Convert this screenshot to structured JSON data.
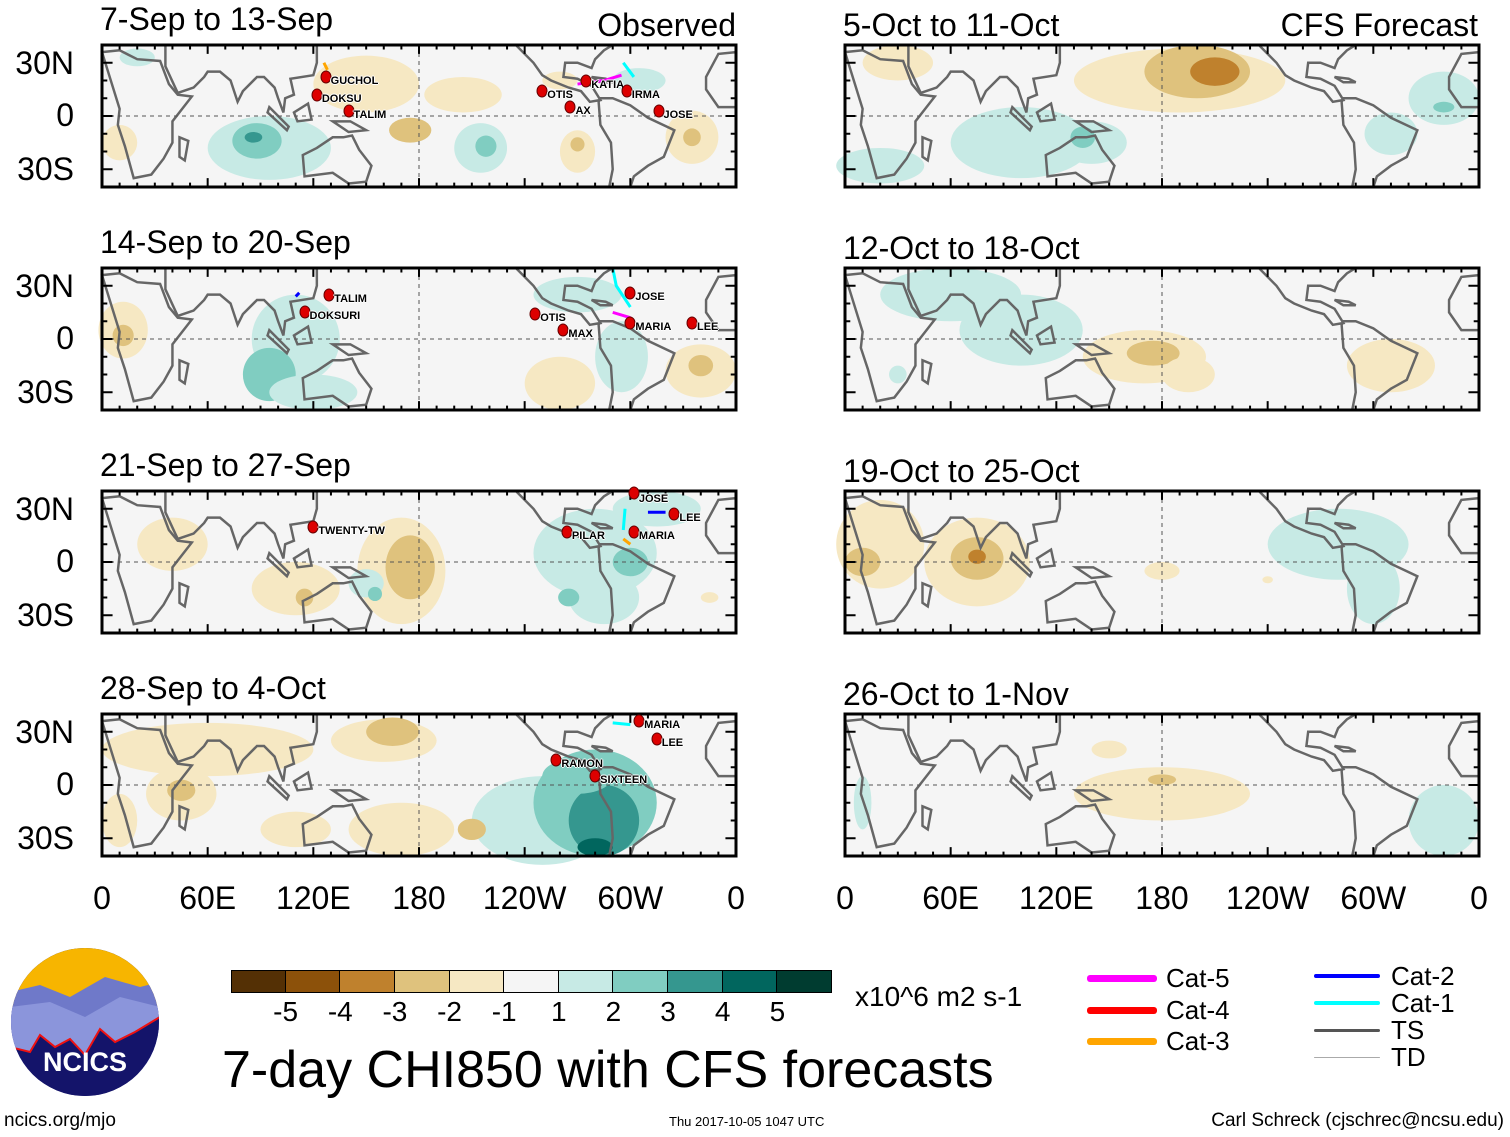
{
  "title": "7-day CHI850 with CFS forecasts",
  "observed_label": "Observed",
  "forecast_label": "CFS Forecast",
  "observed_panels": [
    {
      "title": "7-Sep to 13-Sep",
      "storms": [
        "GUCHOL",
        "DOKSU",
        "TALIM",
        "OTIS",
        "AX",
        "KATIA",
        "IRMA",
        "JOSE"
      ]
    },
    {
      "title": "14-Sep to 20-Sep",
      "storms": [
        "TALIM",
        "DOKSURI",
        "OTIS",
        "MAX",
        "JOSE",
        "MARIA",
        "LEE"
      ]
    },
    {
      "title": "21-Sep to 27-Sep",
      "storms": [
        "TWENTY-TW",
        "PILAR",
        "JOSE",
        "LEE",
        "MARIA"
      ]
    },
    {
      "title": "28-Sep to 4-Oct",
      "storms": [
        "MARIA",
        "LEE",
        "RAMON",
        "SIXTEEN"
      ]
    }
  ],
  "forecast_panels": [
    {
      "title": "5-Oct to 11-Oct"
    },
    {
      "title": "12-Oct to 18-Oct"
    },
    {
      "title": "19-Oct to 25-Oct"
    },
    {
      "title": "26-Oct to 1-Nov"
    }
  ],
  "lat_labels": [
    "30N",
    "0",
    "30S"
  ],
  "lon_labels": [
    "0",
    "60E",
    "120E",
    "180",
    "120W",
    "60W",
    "0"
  ],
  "colorbar": {
    "colors": [
      "#543005",
      "#8c510a",
      "#bf812d",
      "#dfc27d",
      "#f6e8c3",
      "#f5f5f5",
      "#c7eae5",
      "#80cdc1",
      "#35978f",
      "#01665e",
      "#003c30"
    ],
    "labels": [
      "-5",
      "-4",
      "-3",
      "-2",
      "-1",
      "1",
      "2",
      "3",
      "4",
      "5"
    ],
    "units": "x10^6 m2 s-1"
  },
  "storm_legend": [
    {
      "label": "Cat-5",
      "color": "#ff00ff"
    },
    {
      "label": "Cat-4",
      "color": "#ff0000"
    },
    {
      "label": "Cat-3",
      "color": "#ffa500"
    },
    {
      "label": "Cat-2",
      "color": "#0000ff"
    },
    {
      "label": "Cat-1",
      "color": "#00ffff"
    },
    {
      "label": "TS",
      "color": "#555555"
    },
    {
      "label": "TD",
      "color": "#aaaaaa"
    }
  ],
  "logo_text": "NCICS",
  "footer": {
    "left": "ncics.org/mjo",
    "center": "Thu 2017-10-05 1047 UTC",
    "right": "Carl Schreck (cjschrec@ncsu.edu)"
  }
}
